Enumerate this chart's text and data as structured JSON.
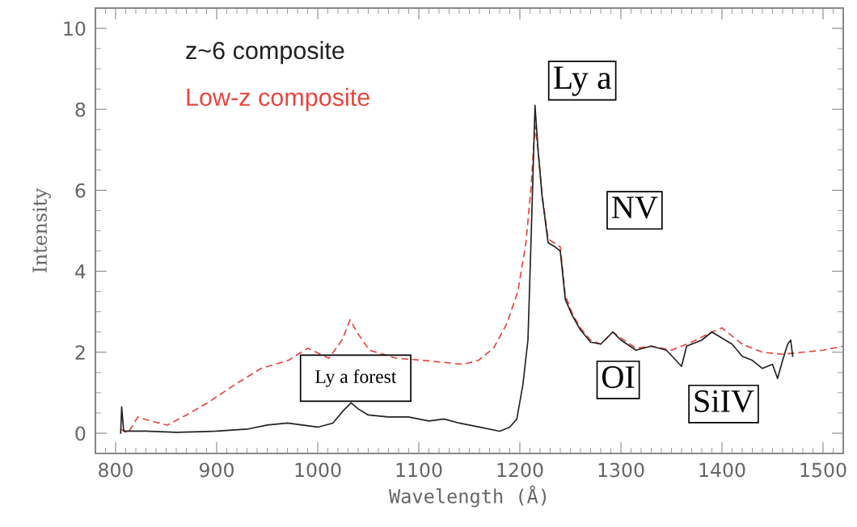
{
  "chart_data": {
    "type": "line",
    "xlabel": "Wavelength (Å)",
    "ylabel": "Intensity",
    "xlim": [
      780,
      1520
    ],
    "ylim": [
      -0.5,
      10.5
    ],
    "xticks": [
      800,
      900,
      1000,
      1100,
      1200,
      1300,
      1400,
      1500
    ],
    "yticks": [
      0,
      2,
      4,
      6,
      8,
      10
    ],
    "grid": false,
    "marker": "none",
    "series": [
      {
        "name": "z~6 composite",
        "color": "#222222",
        "line_style": "solid",
        "x": [
          805,
          806,
          808,
          830,
          860,
          900,
          930,
          950,
          970,
          985,
          1000,
          1015,
          1025,
          1033,
          1040,
          1050,
          1070,
          1090,
          1110,
          1125,
          1140,
          1160,
          1180,
          1190,
          1197,
          1203,
          1208,
          1211,
          1215,
          1218,
          1222,
          1228,
          1235,
          1240,
          1245,
          1252,
          1260,
          1270,
          1280,
          1292,
          1300,
          1315,
          1330,
          1345,
          1360,
          1365,
          1380,
          1390,
          1400,
          1410,
          1420,
          1430,
          1440,
          1450,
          1455,
          1460,
          1465,
          1468,
          1470
        ],
        "values": [
          0.0,
          0.65,
          0.05,
          0.05,
          0.02,
          0.05,
          0.1,
          0.2,
          0.25,
          0.2,
          0.15,
          0.25,
          0.55,
          0.75,
          0.6,
          0.45,
          0.4,
          0.4,
          0.3,
          0.35,
          0.25,
          0.15,
          0.05,
          0.15,
          0.35,
          1.2,
          2.3,
          4.7,
          8.1,
          7.0,
          5.85,
          4.7,
          4.6,
          4.5,
          3.3,
          2.9,
          2.55,
          2.25,
          2.2,
          2.5,
          2.3,
          2.05,
          2.15,
          2.05,
          1.65,
          2.15,
          2.3,
          2.5,
          2.35,
          2.2,
          1.9,
          1.8,
          1.6,
          1.7,
          1.35,
          1.8,
          2.2,
          2.3,
          1.9
        ]
      },
      {
        "name": "Low-z composite",
        "color": "#e8453c",
        "line_style": "dashed",
        "x": [
          805,
          812,
          822,
          835,
          851,
          870,
          891,
          918,
          944,
          971,
          990,
          1011,
          1024,
          1032,
          1040,
          1051,
          1078,
          1104,
          1144,
          1159,
          1174,
          1187,
          1198,
          1206,
          1211,
          1215,
          1218,
          1222,
          1228,
          1240,
          1245,
          1252,
          1260,
          1270,
          1280,
          1292,
          1300,
          1315,
          1330,
          1350,
          1370,
          1390,
          1400,
          1420,
          1440,
          1460,
          1480,
          1500,
          1520
        ],
        "values": [
          0.1,
          0.0,
          0.4,
          0.3,
          0.2,
          0.45,
          0.75,
          1.2,
          1.6,
          1.8,
          2.1,
          1.85,
          2.3,
          2.8,
          2.45,
          2.05,
          1.85,
          1.8,
          1.7,
          1.8,
          2.1,
          2.7,
          3.5,
          4.7,
          6.05,
          7.6,
          7.0,
          5.9,
          4.8,
          4.6,
          3.4,
          2.95,
          2.6,
          2.3,
          2.2,
          2.5,
          2.35,
          2.1,
          2.15,
          2.05,
          2.25,
          2.5,
          2.6,
          2.2,
          2.0,
          1.95,
          2.0,
          2.05,
          2.15
        ]
      }
    ],
    "annotations": [
      "Ly a",
      "NV",
      "OI",
      "SiIV",
      "Ly a forest"
    ]
  }
}
